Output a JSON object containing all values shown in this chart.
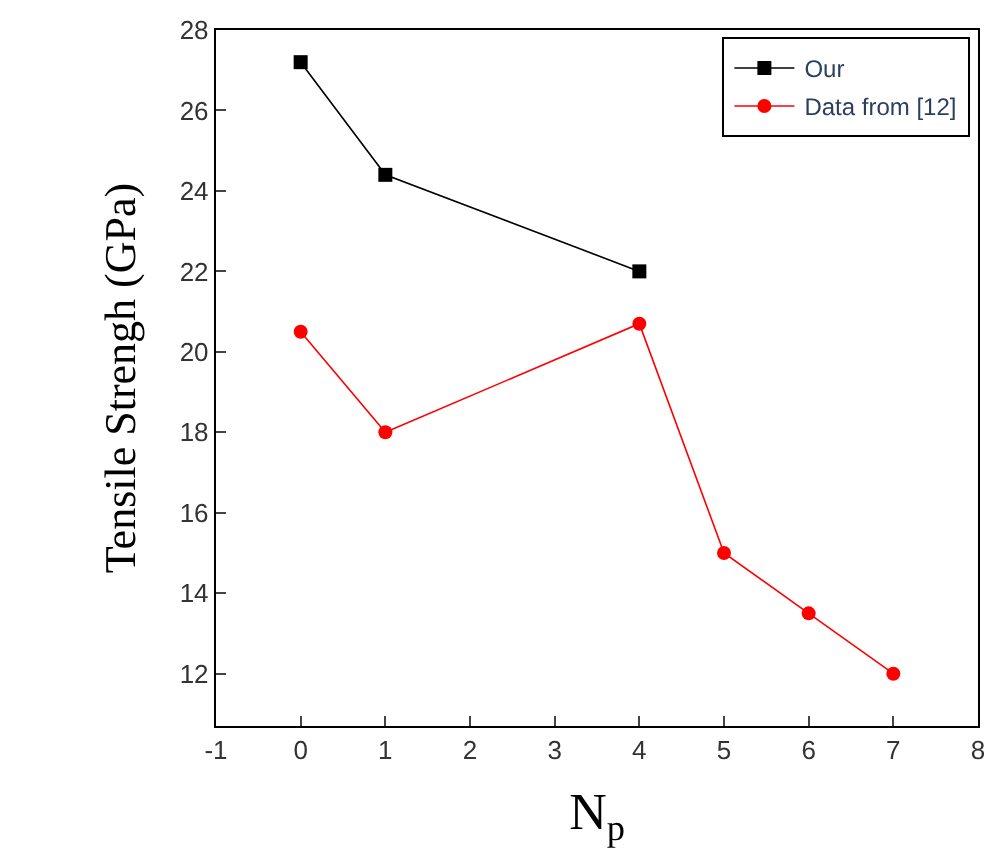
{
  "chart_data": {
    "type": "line",
    "xlabel": "N$_{p}$",
    "ylabel": "Tensile Strengh (GPa)",
    "xlim": [
      -1,
      8
    ],
    "xticks": [
      -1,
      0,
      1,
      2,
      3,
      4,
      5,
      6,
      7,
      8
    ],
    "ylim": [
      10.7,
      28
    ],
    "yticks": [
      12,
      14,
      16,
      18,
      20,
      22,
      24,
      26,
      28
    ],
    "legend": "top right",
    "series": [
      {
        "name": "Our",
        "color": "#000000",
        "marker": "square",
        "x": [
          0,
          1,
          4
        ],
        "values": [
          27.2,
          24.4,
          22.0
        ]
      },
      {
        "name": "Data from [12]",
        "color": "#ff0000",
        "marker": "circle",
        "x": [
          0,
          1,
          4,
          5,
          6,
          7
        ],
        "values": [
          20.5,
          18.0,
          20.7,
          15.0,
          13.5,
          12.0
        ]
      }
    ]
  }
}
